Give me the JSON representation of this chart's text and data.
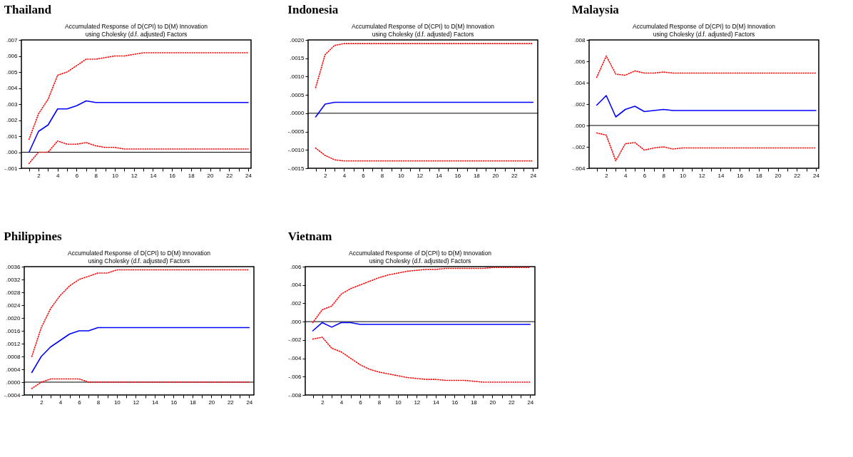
{
  "chart_data": [
    {
      "type": "line",
      "title": "Thailand",
      "subtitle": "Accumulated Response of D(CPI) to D(M) Innovation\nusing Cholesky (d.f. adjusted) Factors",
      "x": [
        1,
        2,
        3,
        4,
        5,
        6,
        7,
        8,
        9,
        10,
        11,
        12,
        13,
        14,
        15,
        16,
        17,
        18,
        19,
        20,
        21,
        22,
        23,
        24
      ],
      "xlim": [
        0.2,
        24.3
      ],
      "xticks": [
        {
          "value": 1,
          "label": null
        },
        2,
        {
          "value": 3,
          "label": null
        },
        4,
        {
          "value": 5,
          "label": null
        },
        6,
        {
          "value": 7,
          "label": null
        },
        8,
        {
          "value": 9,
          "label": null
        },
        10,
        {
          "value": 11,
          "label": null
        },
        12,
        {
          "value": 13,
          "label": null
        },
        14,
        {
          "value": 15,
          "label": null
        },
        16,
        {
          "value": 17,
          "label": null
        },
        18,
        {
          "value": 19,
          "label": null
        },
        20,
        {
          "value": 21,
          "label": null
        },
        22,
        {
          "value": 23,
          "label": null
        },
        24
      ],
      "ylim": [
        -0.001,
        0.007
      ],
      "yticks": [
        {
          "value": -0.001,
          "label": "-.001"
        },
        {
          "value": 0,
          "label": ".000"
        },
        {
          "value": 0.001,
          "label": ".001"
        },
        {
          "value": 0.002,
          "label": ".002"
        },
        {
          "value": 0.003,
          "label": ".003"
        },
        {
          "value": 0.004,
          "label": ".004"
        },
        {
          "value": 0.005,
          "label": ".005"
        },
        {
          "value": 0.006,
          "label": ".006"
        },
        {
          "value": 0.007,
          "label": ".007"
        }
      ],
      "ref_lines": [
        {
          "axis": "y",
          "value": 0,
          "color": "#000000"
        }
      ],
      "series": [
        {
          "color": "#ff0000",
          "line_style": "dotted",
          "values": [
            0.0008,
            0.0024,
            0.0033,
            0.0048,
            0.005,
            0.0054,
            0.0058,
            0.0058,
            0.0059,
            0.006,
            0.006,
            0.0061,
            0.0062,
            0.0062,
            0.0062,
            0.0062,
            0.0062,
            0.0062,
            0.0062,
            0.0062,
            0.0062,
            0.0062,
            0.0062,
            0.0062
          ]
        },
        {
          "color": "#0000ff",
          "line_style": "solid",
          "values": [
            0,
            0.0013,
            0.0017,
            0.0027,
            0.0027,
            0.0029,
            0.0032,
            0.0031,
            0.0031,
            0.0031,
            0.0031,
            0.0031,
            0.0031,
            0.0031,
            0.0031,
            0.0031,
            0.0031,
            0.0031,
            0.0031,
            0.0031,
            0.0031,
            0.0031,
            0.0031,
            0.0031
          ]
        },
        {
          "color": "#ff0000",
          "line_style": "dotted",
          "values": [
            -0.0007,
            0,
            0,
            0.0007,
            0.0005,
            0.0005,
            0.0006,
            0.0004,
            0.0003,
            0.0003,
            0.0002,
            0.0002,
            0.0002,
            0.0002,
            0.0002,
            0.0002,
            0.0002,
            0.0002,
            0.0002,
            0.0002,
            0.0002,
            0.0002,
            0.0002,
            0.0002
          ]
        }
      ]
    },
    {
      "type": "line",
      "title": "Indonesia",
      "subtitle": "Accumulated Response of D(CPI) to D(M) Innovation\nusing Cholesky (d.f. adjusted) Factors",
      "x": [
        1,
        2,
        3,
        4,
        5,
        6,
        7,
        8,
        9,
        10,
        11,
        12,
        13,
        14,
        15,
        16,
        17,
        18,
        19,
        20,
        21,
        22,
        23,
        24
      ],
      "xlim": [
        0.2,
        24.5
      ],
      "xticks": [
        {
          "value": 1,
          "label": null
        },
        2,
        {
          "value": 3,
          "label": null
        },
        4,
        {
          "value": 5,
          "label": null
        },
        6,
        {
          "value": 7,
          "label": null
        },
        8,
        {
          "value": 9,
          "label": null
        },
        10,
        {
          "value": 11,
          "label": null
        },
        12,
        {
          "value": 13,
          "label": null
        },
        14,
        {
          "value": 15,
          "label": null
        },
        16,
        {
          "value": 17,
          "label": null
        },
        18,
        {
          "value": 19,
          "label": null
        },
        20,
        {
          "value": 21,
          "label": null
        },
        22,
        {
          "value": 23,
          "label": null
        },
        24
      ],
      "ylim": [
        -0.0015,
        0.002
      ],
      "yticks": [
        {
          "value": -0.0015,
          "label": "-.0015"
        },
        {
          "value": -0.001,
          "label": "-.0010"
        },
        {
          "value": -0.0005,
          "label": "-.0005"
        },
        {
          "value": 0,
          "label": ".0000"
        },
        {
          "value": 0.0005,
          "label": ".0005"
        },
        {
          "value": 0.001,
          "label": ".0010"
        },
        {
          "value": 0.0015,
          "label": ".0015"
        },
        {
          "value": 0.002,
          "label": ".0020"
        }
      ],
      "ref_lines": [
        {
          "axis": "y",
          "value": 0,
          "color": "#000000"
        }
      ],
      "series": [
        {
          "color": "#ff0000",
          "line_style": "dotted",
          "values": [
            0.0007,
            0.0016,
            0.00185,
            0.0019,
            0.0019,
            0.0019,
            0.0019,
            0.0019,
            0.0019,
            0.0019,
            0.0019,
            0.0019,
            0.0019,
            0.0019,
            0.0019,
            0.0019,
            0.0019,
            0.0019,
            0.0019,
            0.0019,
            0.0019,
            0.0019,
            0.0019,
            0.0019
          ]
        },
        {
          "color": "#0000ff",
          "line_style": "solid",
          "values": [
            -0.0001,
            0.00025,
            0.0003,
            0.0003,
            0.0003,
            0.0003,
            0.0003,
            0.0003,
            0.0003,
            0.0003,
            0.0003,
            0.0003,
            0.0003,
            0.0003,
            0.0003,
            0.0003,
            0.0003,
            0.0003,
            0.0003,
            0.0003,
            0.0003,
            0.0003,
            0.0003,
            0.0003
          ]
        },
        {
          "color": "#ff0000",
          "line_style": "dotted",
          "values": [
            -0.00095,
            -0.00115,
            -0.00127,
            -0.0013,
            -0.0013,
            -0.0013,
            -0.0013,
            -0.0013,
            -0.0013,
            -0.0013,
            -0.0013,
            -0.0013,
            -0.0013,
            -0.0013,
            -0.0013,
            -0.0013,
            -0.0013,
            -0.0013,
            -0.0013,
            -0.0013,
            -0.0013,
            -0.0013,
            -0.0013,
            -0.0013
          ]
        }
      ]
    },
    {
      "type": "line",
      "title": "Malaysia",
      "subtitle": "Accumulated Response of D(CPI) to D(M) Innovation\nusing Cholesky (d.f. adjusted) Factors",
      "x": [
        1,
        2,
        3,
        4,
        5,
        6,
        7,
        8,
        9,
        10,
        11,
        12,
        13,
        14,
        15,
        16,
        17,
        18,
        19,
        20,
        21,
        22,
        23,
        24
      ],
      "xlim": [
        0.2,
        24.3
      ],
      "xticks": [
        {
          "value": 1,
          "label": null
        },
        2,
        {
          "value": 3,
          "label": null
        },
        4,
        {
          "value": 5,
          "label": null
        },
        6,
        {
          "value": 7,
          "label": null
        },
        8,
        {
          "value": 9,
          "label": null
        },
        10,
        {
          "value": 11,
          "label": null
        },
        12,
        {
          "value": 13,
          "label": null
        },
        14,
        {
          "value": 15,
          "label": null
        },
        16,
        {
          "value": 17,
          "label": null
        },
        18,
        {
          "value": 19,
          "label": null
        },
        20,
        {
          "value": 21,
          "label": null
        },
        22,
        {
          "value": 23,
          "label": null
        },
        24
      ],
      "ylim": [
        -0.004,
        0.008
      ],
      "yticks": [
        {
          "value": -0.004,
          "label": "-.004"
        },
        {
          "value": -0.002,
          "label": "-.002"
        },
        {
          "value": 0,
          "label": ".000"
        },
        {
          "value": 0.002,
          "label": ".002"
        },
        {
          "value": 0.004,
          "label": ".004"
        },
        {
          "value": 0.006,
          "label": ".006"
        },
        {
          "value": 0.008,
          "label": ".008"
        }
      ],
      "ref_lines": [
        {
          "axis": "y",
          "value": 0,
          "color": "#000000"
        }
      ],
      "series": [
        {
          "color": "#ff0000",
          "line_style": "dotted",
          "values": [
            0.0045,
            0.0065,
            0.0048,
            0.0047,
            0.0051,
            0.0049,
            0.0049,
            0.005,
            0.0049,
            0.0049,
            0.0049,
            0.0049,
            0.0049,
            0.0049,
            0.0049,
            0.0049,
            0.0049,
            0.0049,
            0.0049,
            0.0049,
            0.0049,
            0.0049,
            0.0049,
            0.0049
          ]
        },
        {
          "color": "#0000ff",
          "line_style": "solid",
          "values": [
            0.0019,
            0.0028,
            0.0008,
            0.0015,
            0.0018,
            0.0013,
            0.0014,
            0.0015,
            0.0014,
            0.0014,
            0.0014,
            0.0014,
            0.0014,
            0.0014,
            0.0014,
            0.0014,
            0.0014,
            0.0014,
            0.0014,
            0.0014,
            0.0014,
            0.0014,
            0.0014,
            0.0014
          ]
        },
        {
          "color": "#ff0000",
          "line_style": "dotted",
          "values": [
            -0.0007,
            -0.0009,
            -0.0033,
            -0.0017,
            -0.0016,
            -0.0023,
            -0.0021,
            -0.002,
            -0.0022,
            -0.0021,
            -0.0021,
            -0.0021,
            -0.0021,
            -0.0021,
            -0.0021,
            -0.0021,
            -0.0021,
            -0.0021,
            -0.0021,
            -0.0021,
            -0.0021,
            -0.0021,
            -0.0021,
            -0.0021
          ]
        }
      ]
    },
    {
      "type": "line",
      "title": "Philippines",
      "subtitle": "Accumulated Response of D(CPI) to D(M) Innovation\nusing Cholesky (d.f. adjusted) Factors",
      "x": [
        1,
        2,
        3,
        4,
        5,
        6,
        7,
        8,
        9,
        10,
        11,
        12,
        13,
        14,
        15,
        16,
        17,
        18,
        19,
        20,
        21,
        22,
        23,
        24
      ],
      "xlim": [
        0.2,
        24.5
      ],
      "xticks": [
        {
          "value": 1,
          "label": null
        },
        2,
        {
          "value": 3,
          "label": null
        },
        4,
        {
          "value": 5,
          "label": null
        },
        6,
        {
          "value": 7,
          "label": null
        },
        8,
        {
          "value": 9,
          "label": null
        },
        10,
        {
          "value": 11,
          "label": null
        },
        12,
        {
          "value": 13,
          "label": null
        },
        14,
        {
          "value": 15,
          "label": null
        },
        16,
        {
          "value": 17,
          "label": null
        },
        18,
        {
          "value": 19,
          "label": null
        },
        20,
        {
          "value": 21,
          "label": null
        },
        22,
        {
          "value": 23,
          "label": null
        },
        24
      ],
      "ylim": [
        -0.0004,
        0.0036
      ],
      "yticks": [
        {
          "value": -0.0004,
          "label": "-.0004"
        },
        {
          "value": 0,
          "label": ".0000"
        },
        {
          "value": 0.0004,
          "label": ".0004"
        },
        {
          "value": 0.0008,
          "label": ".0008"
        },
        {
          "value": 0.0012,
          "label": ".0012"
        },
        {
          "value": 0.0016,
          "label": ".0016"
        },
        {
          "value": 0.002,
          "label": ".0020"
        },
        {
          "value": 0.0024,
          "label": ".0024"
        },
        {
          "value": 0.0028,
          "label": ".0028"
        },
        {
          "value": 0.0032,
          "label": ".0032"
        },
        {
          "value": 0.0036,
          "label": ".0036"
        }
      ],
      "ref_lines": [
        {
          "axis": "y",
          "value": 0,
          "color": "#000000"
        }
      ],
      "series": [
        {
          "color": "#ff0000",
          "line_style": "dotted",
          "values": [
            0.0008,
            0.0017,
            0.0023,
            0.0027,
            0.003,
            0.0032,
            0.0033,
            0.0034,
            0.0034,
            0.0035,
            0.0035,
            0.0035,
            0.0035,
            0.0035,
            0.0035,
            0.0035,
            0.0035,
            0.0035,
            0.0035,
            0.0035,
            0.0035,
            0.0035,
            0.0035,
            0.0035
          ]
        },
        {
          "color": "#0000ff",
          "line_style": "solid",
          "values": [
            0.0003,
            0.0008,
            0.0011,
            0.0013,
            0.0015,
            0.0016,
            0.0016,
            0.0017,
            0.0017,
            0.0017,
            0.0017,
            0.0017,
            0.0017,
            0.0017,
            0.0017,
            0.0017,
            0.0017,
            0.0017,
            0.0017,
            0.0017,
            0.0017,
            0.0017,
            0.0017,
            0.0017
          ]
        },
        {
          "color": "#ff0000",
          "line_style": "dotted",
          "values": [
            -0.0002,
            0,
            0.0001,
            0.0001,
            0.0001,
            0.0001,
            0,
            0,
            0,
            0,
            0,
            0,
            0,
            0,
            0,
            0,
            0,
            0,
            0,
            0,
            0,
            0,
            0,
            0
          ]
        }
      ]
    },
    {
      "type": "line",
      "title": "Vietnam",
      "subtitle": "Accumulated Response of D(CPI) to D(M) Innovation\nusing Cholesky (d.f. adjusted) Factors",
      "x": [
        1,
        2,
        3,
        4,
        5,
        6,
        7,
        8,
        9,
        10,
        11,
        12,
        13,
        14,
        15,
        16,
        17,
        18,
        19,
        20,
        21,
        22,
        23,
        24
      ],
      "xlim": [
        0.2,
        24.5
      ],
      "xticks": [
        {
          "value": 1,
          "label": null
        },
        2,
        {
          "value": 3,
          "label": null
        },
        4,
        {
          "value": 5,
          "label": null
        },
        6,
        {
          "value": 7,
          "label": null
        },
        8,
        {
          "value": 9,
          "label": null
        },
        10,
        {
          "value": 11,
          "label": null
        },
        12,
        {
          "value": 13,
          "label": null
        },
        14,
        {
          "value": 15,
          "label": null
        },
        16,
        {
          "value": 17,
          "label": null
        },
        18,
        {
          "value": 19,
          "label": null
        },
        20,
        {
          "value": 21,
          "label": null
        },
        22,
        {
          "value": 23,
          "label": null
        },
        24
      ],
      "ylim": [
        -0.008,
        0.006
      ],
      "yticks": [
        {
          "value": -0.008,
          "label": "-.008"
        },
        {
          "value": -0.006,
          "label": "-.006"
        },
        {
          "value": -0.004,
          "label": "-.004"
        },
        {
          "value": -0.002,
          "label": "-.002"
        },
        {
          "value": 0,
          "label": ".000"
        },
        {
          "value": 0.002,
          "label": ".002"
        },
        {
          "value": 0.004,
          "label": ".004"
        },
        {
          "value": 0.006,
          "label": ".006"
        }
      ],
      "ref_lines": [
        {
          "axis": "y",
          "value": 0,
          "color": "#000000"
        }
      ],
      "series": [
        {
          "color": "#ff0000",
          "line_style": "dotted",
          "values": [
            -0.0001,
            0.0013,
            0.0017,
            0.003,
            0.0036,
            0.004,
            0.0044,
            0.0048,
            0.0051,
            0.0053,
            0.0055,
            0.0056,
            0.0057,
            0.0057,
            0.0058,
            0.0058,
            0.0058,
            0.0058,
            0.0058,
            0.0059,
            0.0059,
            0.0059,
            0.0059,
            0.0059
          ]
        },
        {
          "color": "#0000ff",
          "line_style": "solid",
          "values": [
            -0.001,
            -0.0001,
            -0.0006,
            -0.0001,
            -0.0001,
            -0.0003,
            -0.0003,
            -0.0003,
            -0.0003,
            -0.0003,
            -0.0003,
            -0.0003,
            -0.0003,
            -0.0003,
            -0.0003,
            -0.0003,
            -0.0003,
            -0.0003,
            -0.0003,
            -0.0003,
            -0.0003,
            -0.0003,
            -0.0003,
            -0.0003
          ]
        },
        {
          "color": "#ff0000",
          "line_style": "dotted",
          "values": [
            -0.0019,
            -0.0017,
            -0.0029,
            -0.0033,
            -0.004,
            -0.0047,
            -0.0052,
            -0.0055,
            -0.0057,
            -0.0059,
            -0.0061,
            -0.0062,
            -0.0063,
            -0.0063,
            -0.0064,
            -0.0064,
            -0.0064,
            -0.0065,
            -0.0066,
            -0.0066,
            -0.0066,
            -0.0066,
            -0.0066,
            -0.0066
          ]
        }
      ]
    }
  ]
}
